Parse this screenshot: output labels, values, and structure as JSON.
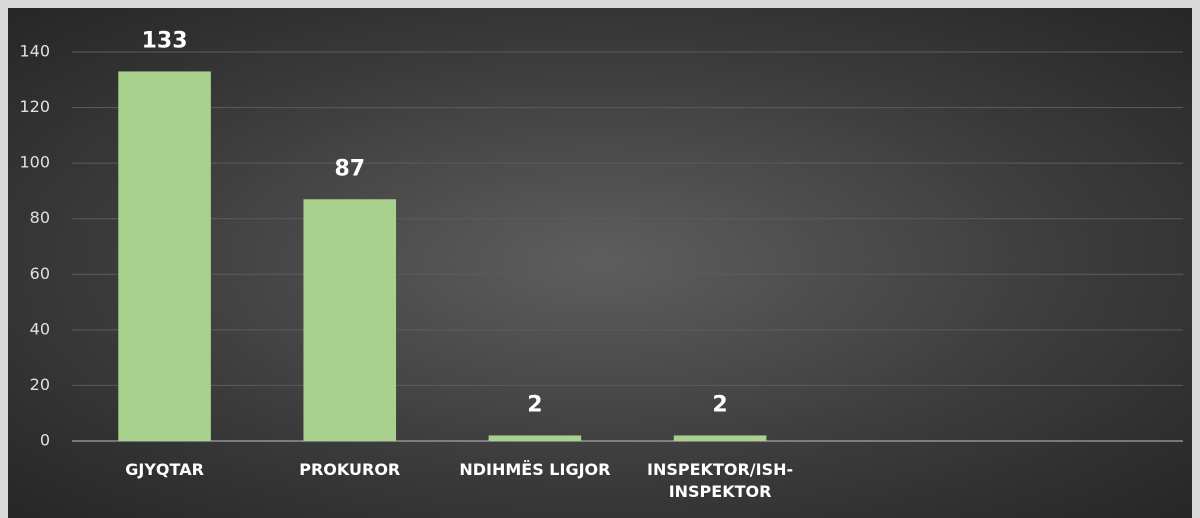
{
  "chart_data": {
    "type": "bar",
    "categories": [
      "GJYQTAR",
      "PROKUROR",
      "NDIHMËS LIGJOR",
      "INSPEKTOR/ISH-INSPEKTOR",
      null,
      null
    ],
    "values": [
      133,
      87,
      2,
      2,
      null,
      null
    ],
    "color": "#a9d18e",
    "ylim": [
      0,
      140
    ],
    "yticks": [
      0,
      20,
      40,
      60,
      80,
      100,
      120,
      140
    ],
    "grid": true
  }
}
